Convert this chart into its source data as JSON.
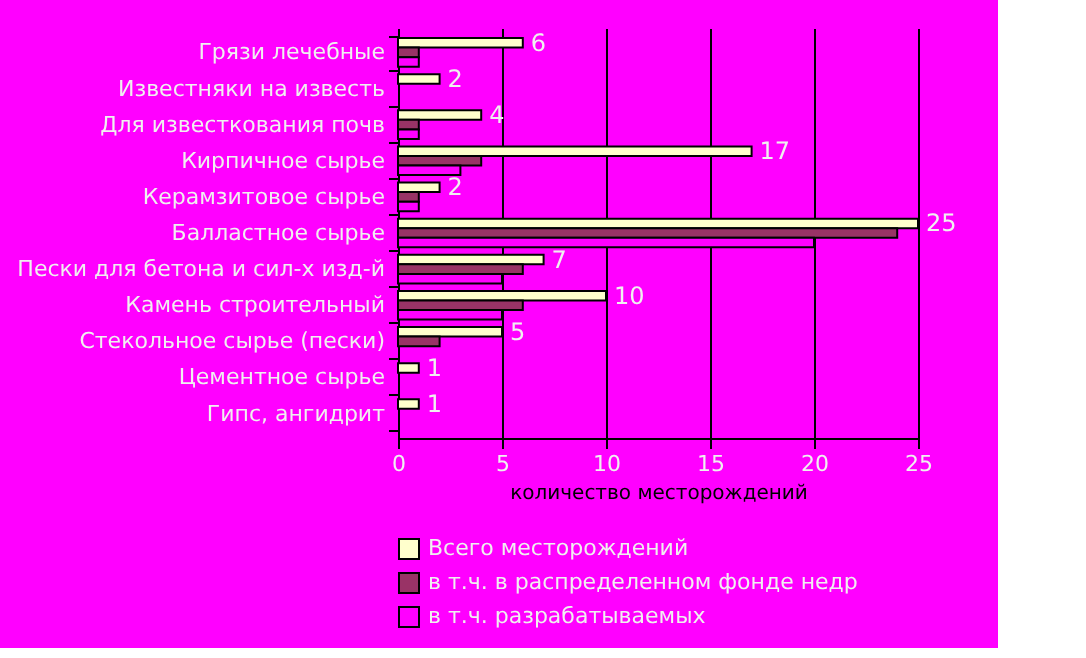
{
  "chart_data": {
    "type": "bar",
    "orientation": "horizontal",
    "categories": [
      "Грязи лечебные",
      "Известняки на известь",
      "Для известкования почв",
      "Кирпичное сырье",
      "Керамзитовое сырье",
      "Балластное сырье",
      "Пески для бетона и сил-х изд-й",
      "Камень строительный",
      "Стекольное сырье (пески)",
      "Цементное сырье",
      "Гипс, ангидрит"
    ],
    "series": [
      {
        "name": "Всего месторождений",
        "color": "#ffffcc",
        "values": [
          6,
          2,
          4,
          17,
          2,
          25,
          7,
          10,
          5,
          1,
          1
        ],
        "value_labels": [
          "6",
          "2",
          "4",
          "17",
          "2",
          "25",
          "7",
          "10",
          "5",
          "1",
          "1"
        ]
      },
      {
        "name": "в т.ч. в распределенном фонде недр",
        "color": "#993366",
        "values": [
          1,
          null,
          1,
          4,
          1,
          24,
          6,
          6,
          2,
          null,
          null
        ]
      },
      {
        "name": "в т.ч. разрабатываемых",
        "color": "#ff00ff",
        "values": [
          1,
          null,
          1,
          3,
          1,
          20,
          5,
          5,
          null,
          null,
          null
        ]
      }
    ],
    "xlabel": "количество месторождений",
    "xlim": [
      0,
      25
    ],
    "xticks": [
      0,
      5,
      10,
      15,
      20,
      25
    ],
    "grid": "x",
    "legend": "bottom"
  }
}
